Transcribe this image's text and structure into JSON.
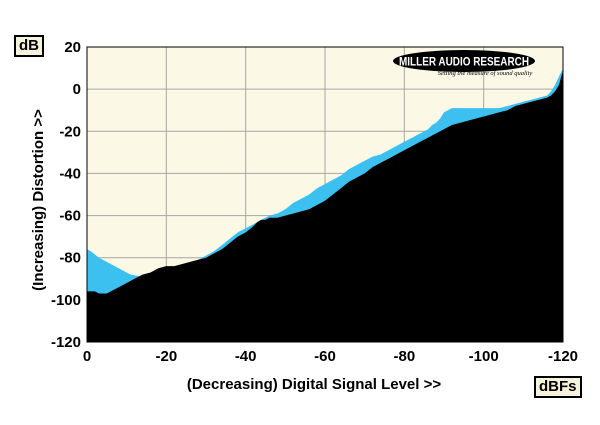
{
  "chart_data": {
    "type": "area",
    "ylabel": "(Increasing) Distortion >>",
    "xlabel": "(Decreasing) Digital Signal Level >>",
    "y_unit": "dB",
    "x_unit": "dBFs",
    "xlim": [
      0,
      -120
    ],
    "ylim": [
      -120,
      20
    ],
    "x_ticks": [
      0,
      -20,
      -40,
      -60,
      -80,
      -100,
      -120
    ],
    "y_ticks": [
      20,
      0,
      -20,
      -40,
      -60,
      -80,
      -100,
      -120
    ],
    "grid": true,
    "logo": {
      "main": "MILLER AUDIO RESEARCH",
      "tagline": "Setting the measure of sound quality"
    },
    "colors": {
      "plot_bg": "#fbf9e6",
      "grid": "#a6a6a6",
      "black_series": "#000000",
      "blue_series": "#3cc0f0"
    },
    "series": [
      {
        "color": "#3cc0f0",
        "x": [
          0,
          -1,
          -3,
          -5,
          -8,
          -11,
          -14,
          -16,
          -18,
          -20,
          -22,
          -24,
          -26,
          -28,
          -30,
          -32,
          -34,
          -36,
          -38,
          -40,
          -42,
          -44,
          -46,
          -48,
          -50,
          -52,
          -54,
          -56,
          -58,
          -60,
          -62,
          -64,
          -66,
          -68,
          -70,
          -72,
          -74,
          -76,
          -78,
          -80,
          -82,
          -84,
          -86,
          -87,
          -88,
          -89,
          -90,
          -91,
          -92,
          -93,
          -94,
          -96,
          -98,
          -100,
          -102,
          -104,
          -106,
          -108,
          -110,
          -112,
          -114,
          -116,
          -117,
          -118,
          -119,
          -120
        ],
        "y": [
          -76,
          -77,
          -80,
          -82,
          -85,
          -88,
          -89,
          -88,
          -86,
          -85,
          -85,
          -84,
          -83,
          -81,
          -79,
          -77,
          -74,
          -71,
          -68,
          -66,
          -64,
          -62,
          -60,
          -59,
          -57,
          -54,
          -52,
          -50,
          -47,
          -45,
          -43,
          -41,
          -38,
          -36,
          -34,
          -32,
          -31,
          -29,
          -27,
          -25,
          -23,
          -21,
          -19,
          -17,
          -16,
          -14,
          -11,
          -10,
          -9,
          -9,
          -9,
          -9,
          -9,
          -9,
          -9,
          -9,
          -8,
          -7,
          -6,
          -5,
          -4,
          -3,
          -1,
          2,
          6,
          10
        ]
      },
      {
        "color": "#000000",
        "x": [
          0,
          -1,
          -2,
          -3,
          -4,
          -5,
          -6,
          -8,
          -10,
          -12,
          -14,
          -16,
          -18,
          -20,
          -22,
          -24,
          -26,
          -28,
          -30,
          -32,
          -34,
          -36,
          -38,
          -40,
          -42,
          -43,
          -44,
          -45,
          -46,
          -48,
          -50,
          -52,
          -54,
          -56,
          -58,
          -60,
          -62,
          -64,
          -66,
          -68,
          -70,
          -72,
          -74,
          -76,
          -78,
          -80,
          -82,
          -84,
          -86,
          -88,
          -90,
          -92,
          -94,
          -96,
          -98,
          -100,
          -102,
          -104,
          -106,
          -108,
          -110,
          -112,
          -114,
          -116,
          -117,
          -118,
          -119,
          -120
        ],
        "y": [
          -96,
          -96,
          -96,
          -97,
          -97,
          -97,
          -96,
          -94,
          -92,
          -90,
          -88,
          -87,
          -85,
          -84,
          -84,
          -83,
          -82,
          -81,
          -80,
          -78,
          -76,
          -73,
          -70,
          -68,
          -65,
          -63,
          -62,
          -62,
          -61,
          -61,
          -60,
          -59,
          -58,
          -57,
          -55,
          -53,
          -50,
          -47,
          -44,
          -42,
          -40,
          -37,
          -35,
          -33,
          -31,
          -29,
          -27,
          -25,
          -23,
          -21,
          -19,
          -17,
          -16,
          -15,
          -14,
          -13,
          -12,
          -11,
          -10,
          -8,
          -7,
          -6,
          -5,
          -4,
          -3,
          -1,
          2,
          9
        ]
      }
    ]
  }
}
